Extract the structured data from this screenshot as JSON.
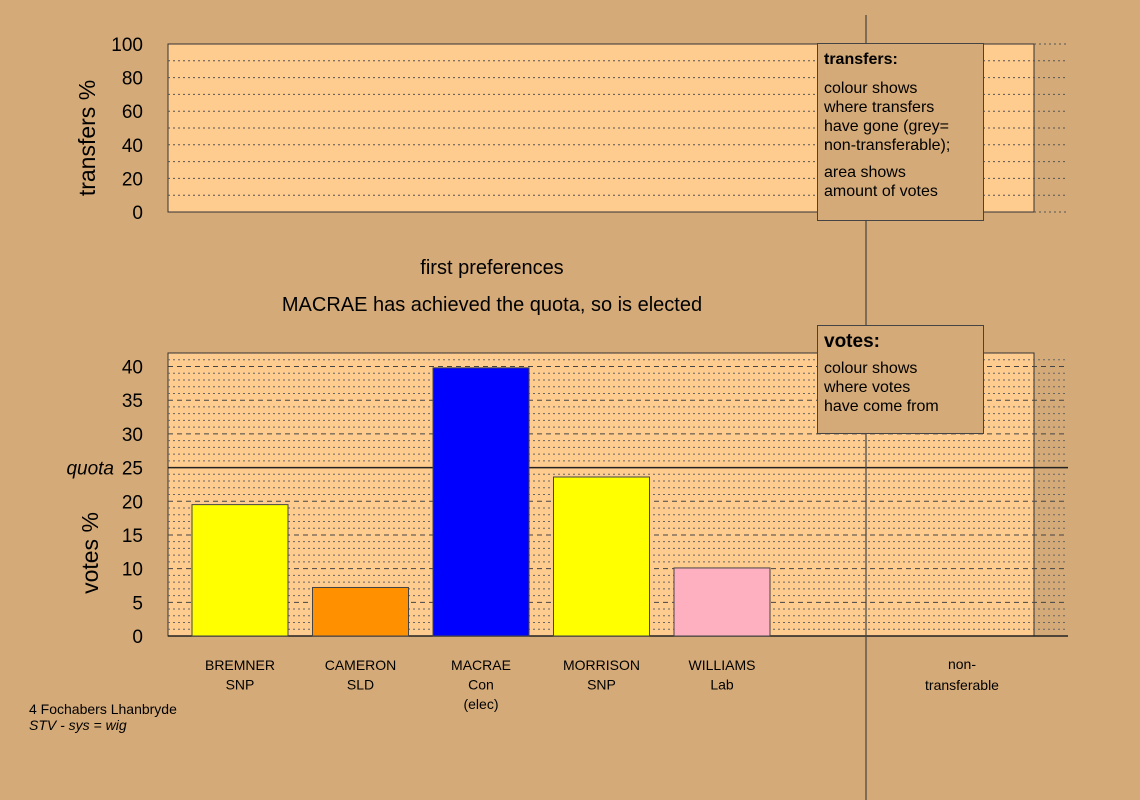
{
  "chart_data": [
    {
      "type": "bar",
      "title": "",
      "ylabel": "transfers %",
      "ylim": [
        0,
        100
      ],
      "yticks": [
        "0",
        "20",
        "40",
        "60",
        "80",
        "100"
      ],
      "categories": [],
      "values": []
    },
    {
      "type": "bar",
      "title": "first preferences",
      "subtitle": "MACRAE has achieved the quota, so is elected",
      "ylabel": "votes %",
      "ylim": [
        0,
        40
      ],
      "yticks": [
        "0",
        "5",
        "10",
        "15",
        "20",
        "25",
        "30",
        "35",
        "40"
      ],
      "quota": 25,
      "quota_label": "quota",
      "categories": [
        "BREMNER",
        "CAMERON",
        "MACRAE",
        "MORRISON",
        "WILLIAMS"
      ],
      "category_lines": [
        [
          "BREMNER",
          "SNP"
        ],
        [
          "CAMERON",
          "SLD"
        ],
        [
          "MACRAE",
          "Con",
          "(elec)"
        ],
        [
          "MORRISON",
          "SNP"
        ],
        [
          "WILLIAMS",
          "Lab"
        ]
      ],
      "values": [
        19.5,
        7.2,
        39.8,
        23.6,
        10.1
      ],
      "colors": [
        "#ffff00",
        "#ff9000",
        "#0000ff",
        "#ffff00",
        "#ffb0c0"
      ],
      "non_transferable_lines": [
        "non-",
        "transferable"
      ]
    }
  ],
  "legend_transfers": {
    "heading": "transfers:",
    "text1": "colour shows\nwhere transfers\nhave gone (grey=\nnon-transferable);",
    "text2": "area shows\namount of votes"
  },
  "legend_votes": {
    "heading": "votes:",
    "text1": "colour shows\nwhere votes\nhave come from"
  },
  "footer": {
    "line1": "4 Fochabers Lhanbryde",
    "line2": "STV - sys = wig"
  },
  "colors": {
    "background": "#d4aa78",
    "plot_fill": "#ffcc90"
  }
}
